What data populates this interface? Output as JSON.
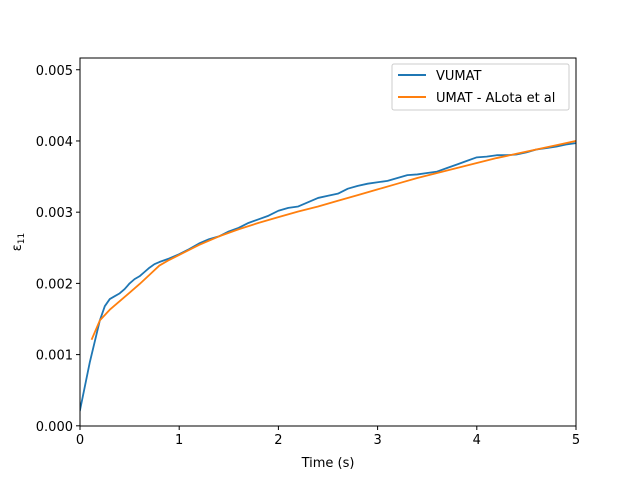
{
  "chart_data": {
    "type": "line",
    "title": "",
    "xlabel": "Time (s)",
    "ylabel_main": "ε",
    "ylabel_sub": "11",
    "xlim": [
      0,
      5
    ],
    "ylim": [
      -2.5e-06,
      0.005165
    ],
    "x_ticks": [
      0,
      1,
      2,
      3,
      4,
      5
    ],
    "x_tick_labels": [
      "0",
      "1",
      "2",
      "3",
      "4",
      "5"
    ],
    "y_ticks": [
      0.0,
      0.001,
      0.002,
      0.003,
      0.004,
      0.005
    ],
    "y_tick_labels": [
      "0.000",
      "0.001",
      "0.002",
      "0.003",
      "0.004",
      "0.005"
    ],
    "grid": false,
    "legend_position": "upper right",
    "series": [
      {
        "name": "VUMAT",
        "color": "#1f77b4",
        "x": [
          0.0,
          0.1,
          0.2,
          0.25,
          0.3,
          0.35,
          0.4,
          0.45,
          0.5,
          0.55,
          0.6,
          0.65,
          0.7,
          0.75,
          0.8,
          0.9,
          1.0,
          1.1,
          1.2,
          1.3,
          1.4,
          1.5,
          1.6,
          1.7,
          1.8,
          1.9,
          2.0,
          2.1,
          2.2,
          2.3,
          2.4,
          2.5,
          2.6,
          2.7,
          2.8,
          2.9,
          3.0,
          3.1,
          3.2,
          3.3,
          3.4,
          3.5,
          3.6,
          3.7,
          3.8,
          3.9,
          4.0,
          4.1,
          4.2,
          4.3,
          4.4,
          4.5,
          4.6,
          4.7,
          4.8,
          4.9,
          5.0
        ],
        "y": [
          0.00022,
          0.0009,
          0.00148,
          0.00168,
          0.00178,
          0.00182,
          0.00186,
          0.00192,
          0.002,
          0.00206,
          0.0021,
          0.00216,
          0.00222,
          0.00227,
          0.0023,
          0.00235,
          0.00241,
          0.00248,
          0.00256,
          0.00262,
          0.00266,
          0.00273,
          0.00278,
          0.00285,
          0.0029,
          0.00295,
          0.00302,
          0.00306,
          0.00308,
          0.00314,
          0.0032,
          0.00323,
          0.00326,
          0.00333,
          0.00337,
          0.0034,
          0.00342,
          0.00344,
          0.00348,
          0.00352,
          0.00353,
          0.00355,
          0.00357,
          0.00362,
          0.00367,
          0.00372,
          0.00377,
          0.00378,
          0.0038,
          0.0038,
          0.00381,
          0.00384,
          0.00388,
          0.0039,
          0.00392,
          0.00395,
          0.00397
        ]
      },
      {
        "name": "UMAT - ALota et al",
        "color": "#ff7f0e",
        "x": [
          0.12,
          0.2,
          0.3,
          0.4,
          0.5,
          0.6,
          0.7,
          0.8,
          0.9,
          1.0,
          1.2,
          1.4,
          1.6,
          1.8,
          2.0,
          2.2,
          2.4,
          2.6,
          2.8,
          3.0,
          3.2,
          3.4,
          3.6,
          3.8,
          4.0,
          4.2,
          4.4,
          4.6,
          4.8,
          5.0
        ],
        "y": [
          0.00122,
          0.00148,
          0.00163,
          0.00175,
          0.00187,
          0.00199,
          0.00212,
          0.00225,
          0.00233,
          0.0024,
          0.00254,
          0.00266,
          0.00276,
          0.00285,
          0.00293,
          0.00301,
          0.00308,
          0.00316,
          0.00324,
          0.00332,
          0.0034,
          0.00348,
          0.00355,
          0.00362,
          0.00369,
          0.00376,
          0.00382,
          0.00388,
          0.00394,
          0.004
        ]
      }
    ]
  }
}
